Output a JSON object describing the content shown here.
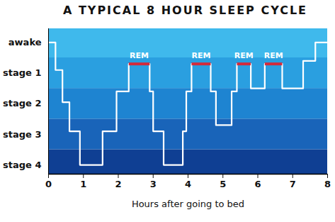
{
  "chart_data": {
    "type": "line",
    "title": "A TYPICAL 8 HOUR SLEEP CYCLE",
    "x_label": "Hours after going to bed",
    "xlim": [
      0,
      8
    ],
    "xticks": [
      0,
      1,
      2,
      3,
      4,
      5,
      6,
      7,
      8
    ],
    "ylim": [
      -0.3,
      4.45
    ],
    "yticks": [
      {
        "value": 4,
        "label": "awake"
      },
      {
        "value": 3,
        "label": "stage 1"
      },
      {
        "value": 2,
        "label": "stage 2"
      },
      {
        "value": 1,
        "label": "stage 3"
      },
      {
        "value": 0,
        "label": "stage 4"
      }
    ],
    "x": [
      0,
      0.2,
      0.4,
      0.6,
      0.9,
      1.55,
      1.95,
      2.3,
      2.9,
      3.0,
      3.3,
      3.85,
      3.95,
      4.1,
      4.65,
      4.8,
      5.25,
      5.4,
      5.8,
      6.2,
      6.7,
      7.3,
      7.65,
      8
    ],
    "values": [
      4,
      3.1,
      2.05,
      1.1,
      0,
      1.1,
      2.4,
      3.3,
      2.4,
      1.1,
      0,
      1.1,
      2.4,
      3.3,
      2.4,
      1.3,
      2.4,
      3.3,
      2.5,
      3.3,
      2.5,
      3.4,
      4,
      4
    ],
    "color": "#ffffff",
    "line_style": "step",
    "annotations": [
      {
        "text": "REM",
        "x": [
          2.3,
          2.9
        ],
        "y": 3.3,
        "color": "#d22b3c"
      },
      {
        "text": "REM",
        "x": [
          4.1,
          4.65
        ],
        "y": 3.3,
        "color": "#d22b3c"
      },
      {
        "text": "REM",
        "x": [
          5.4,
          5.8
        ],
        "y": 3.3,
        "color": "#d22b3c"
      },
      {
        "text": "REM",
        "x": [
          6.2,
          6.7
        ],
        "y": 3.3,
        "color": "#d22b3c"
      }
    ]
  }
}
